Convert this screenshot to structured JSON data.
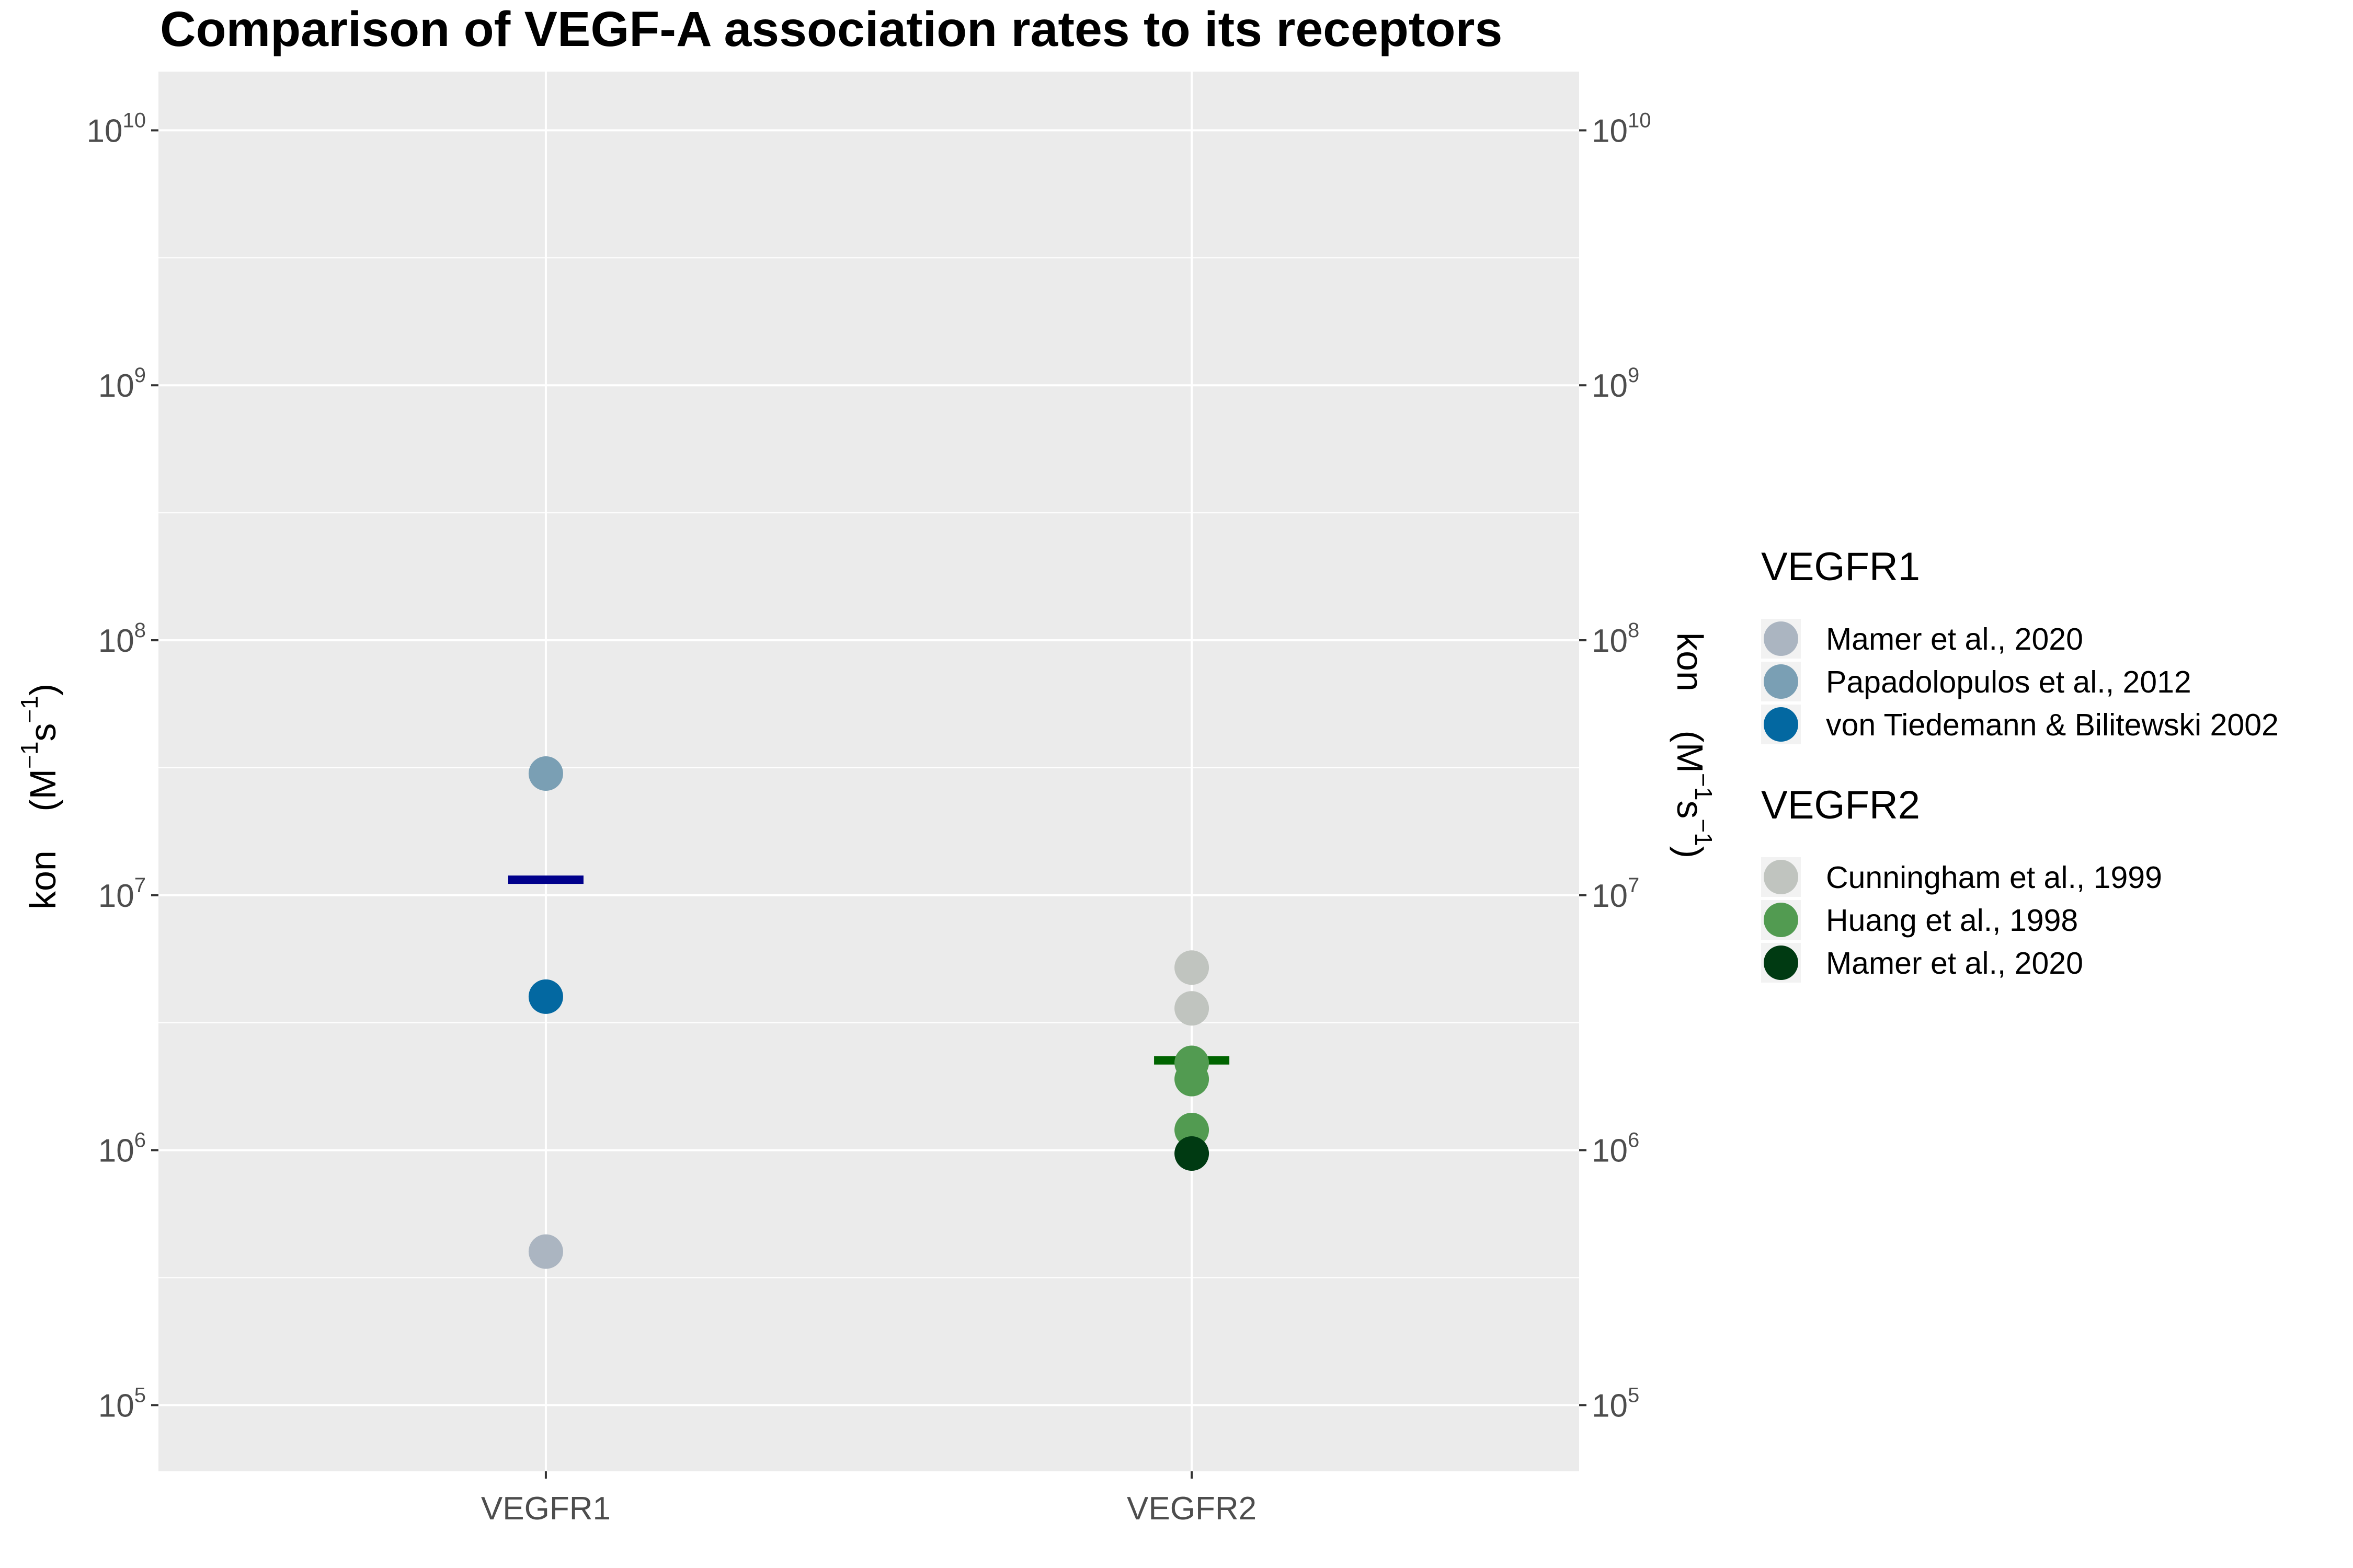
{
  "chart_data": {
    "type": "scatter",
    "title": "Comparison of VEGF-A association rates to its receptors",
    "xlabel": "",
    "ylabel": {
      "base": "kon",
      "unit_open": "(M",
      "unit_exp1": "−1",
      "unit_mid": "s",
      "unit_exp2": "−1",
      "unit_close": ")"
    },
    "y_scale": "log10",
    "ylim": [
      55000,
      17000000000
    ],
    "y_ticks": [
      {
        "value": 100000,
        "base": "10",
        "exp": "5"
      },
      {
        "value": 1000000,
        "base": "10",
        "exp": "6"
      },
      {
        "value": 10000000,
        "base": "10",
        "exp": "7"
      },
      {
        "value": 100000000,
        "base": "10",
        "exp": "8"
      },
      {
        "value": 1000000000,
        "base": "10",
        "exp": "9"
      },
      {
        "value": 10000000000,
        "base": "10",
        "exp": "10"
      }
    ],
    "secondary_y_axis": true,
    "grid": true,
    "categories": [
      "VEGFR1",
      "VEGFR2"
    ],
    "points": [
      {
        "category": "VEGFR1",
        "series": "VEGFR1 Mamer et al., 2020",
        "y": 400000,
        "color": "#abb5c1"
      },
      {
        "category": "VEGFR1",
        "series": "Papadolopulos et al., 2012",
        "y": 30000000,
        "color": "#7a9fb4"
      },
      {
        "category": "VEGFR1",
        "series": "von Tiedemann & Bilitewski 2002",
        "y": 4000000,
        "color": "#0368a1"
      },
      {
        "category": "VEGFR2",
        "series": "Cunningham et al., 1999",
        "y": 5200000,
        "color": "#c0c4bf"
      },
      {
        "category": "VEGFR2",
        "series": "Cunningham et al., 1999",
        "y": 3600000,
        "color": "#c0c4bf"
      },
      {
        "category": "VEGFR2",
        "series": "Huang et al., 1998",
        "y": 2200000,
        "color": "#529b51"
      },
      {
        "category": "VEGFR2",
        "series": "Huang et al., 1998",
        "y": 1900000,
        "color": "#529b51"
      },
      {
        "category": "VEGFR2",
        "series": "Huang et al., 1998",
        "y": 1200000,
        "color": "#529b51"
      },
      {
        "category": "VEGFR2",
        "series": "VEGFR2 Mamer et al., 2020",
        "y": 970000,
        "color": "#003a12"
      }
    ],
    "summary_lines": [
      {
        "category": "VEGFR1",
        "y": 11500000,
        "color": "#00008b"
      },
      {
        "category": "VEGFR2",
        "y": 2250000,
        "color": "#006400"
      }
    ],
    "legend_position": "right",
    "legend": [
      {
        "title": "VEGFR1",
        "entries": [
          {
            "label": "Mamer et al., 2020",
            "color": "#abb5c1"
          },
          {
            "label": "Papadolopulos et al., 2012",
            "color": "#7a9fb4"
          },
          {
            "label": "von Tiedemann & Bilitewski 2002",
            "color": "#0368a1"
          }
        ]
      },
      {
        "title": "VEGFR2",
        "entries": [
          {
            "label": "Cunningham et al., 1999",
            "color": "#c0c4bf"
          },
          {
            "label": "Huang et al., 1998",
            "color": "#529b51"
          },
          {
            "label": "Mamer et al., 2020",
            "color": "#003a12"
          }
        ]
      }
    ],
    "panel_background": "#ebebeb",
    "grid_color": "#ffffff"
  }
}
